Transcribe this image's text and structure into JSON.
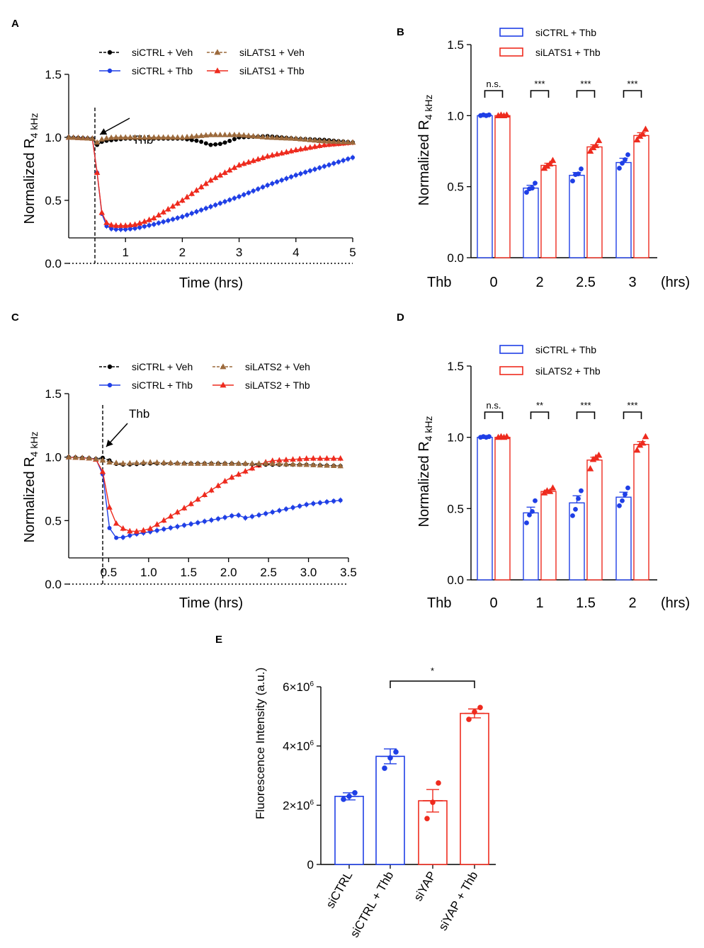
{
  "colors": {
    "blue": "#1f3fe6",
    "red": "#ee2b1e",
    "black": "#000000",
    "brown": "#9c6a3c"
  },
  "chart_data": [
    {
      "id": "A",
      "type": "line",
      "panel_label": "A",
      "xlabel": "Time (hrs)",
      "ylabel_main": "Normalized R",
      "ylabel_sub": "4 kHz",
      "xlim": [
        0,
        5
      ],
      "ylim": [
        0,
        1.5
      ],
      "xticks": [
        {
          "v": 1,
          "label": "1"
        },
        {
          "v": 2,
          "label": "2"
        },
        {
          "v": 3,
          "label": "3"
        },
        {
          "v": 4,
          "label": "4"
        },
        {
          "v": 5,
          "label": "5"
        }
      ],
      "yticks": [
        {
          "v": 0,
          "label": "0.0"
        },
        {
          "v": 0.5,
          "label": "0.5"
        },
        {
          "v": 1.0,
          "label": "1.0"
        },
        {
          "v": 1.5,
          "label": "1.5"
        }
      ],
      "annotation": {
        "text": "Thb",
        "x": 0.45
      },
      "legend": [
        {
          "name": "siCTRL + Veh",
          "color": "black",
          "marker": "circle",
          "dashed": true
        },
        {
          "name": "siLATS1 + Veh",
          "color": "brown",
          "marker": "triangle",
          "dashed": true
        },
        {
          "name": "siCTRL + Thb",
          "color": "blue",
          "marker": "circle",
          "dashed": false
        },
        {
          "name": "siLATS1 + Thb",
          "color": "red",
          "marker": "triangle",
          "dashed": false
        }
      ],
      "series": [
        {
          "name": "siCTRL + Veh",
          "color": "black",
          "marker": "circle",
          "dashed": true,
          "points": [
            [
              0,
              1.0
            ],
            [
              0.45,
              0.99
            ],
            [
              0.5,
              0.94
            ],
            [
              0.6,
              0.97
            ],
            [
              0.8,
              0.98
            ],
            [
              1.0,
              0.99
            ],
            [
              1.5,
              0.99
            ],
            [
              2.0,
              0.99
            ],
            [
              2.3,
              0.97
            ],
            [
              2.5,
              0.94
            ],
            [
              2.7,
              0.95
            ],
            [
              3.0,
              1.0
            ],
            [
              3.5,
              1.01
            ],
            [
              4.0,
              0.99
            ],
            [
              4.5,
              0.98
            ],
            [
              5.0,
              0.96
            ]
          ]
        },
        {
          "name": "siLATS1 + Veh",
          "color": "brown",
          "marker": "triangle",
          "dashed": true,
          "points": [
            [
              0,
              1.0
            ],
            [
              0.45,
              0.99
            ],
            [
              0.5,
              0.96
            ],
            [
              0.6,
              0.99
            ],
            [
              0.8,
              1.0
            ],
            [
              1.0,
              1.0
            ],
            [
              1.5,
              1.0
            ],
            [
              2.0,
              1.0
            ],
            [
              2.5,
              1.02
            ],
            [
              3.0,
              1.02
            ],
            [
              3.5,
              1.0
            ],
            [
              4.0,
              0.99
            ],
            [
              4.5,
              0.97
            ],
            [
              5.0,
              0.96
            ]
          ]
        },
        {
          "name": "siCTRL + Thb",
          "color": "blue",
          "marker": "circle",
          "dashed": false,
          "points": [
            [
              0,
              1.0
            ],
            [
              0.45,
              0.99
            ],
            [
              0.5,
              0.72
            ],
            [
              0.55,
              0.46
            ],
            [
              0.62,
              0.32
            ],
            [
              0.7,
              0.28
            ],
            [
              0.8,
              0.27
            ],
            [
              1.0,
              0.27
            ],
            [
              1.2,
              0.28
            ],
            [
              1.5,
              0.31
            ],
            [
              2.0,
              0.37
            ],
            [
              2.5,
              0.45
            ],
            [
              3.0,
              0.53
            ],
            [
              3.5,
              0.62
            ],
            [
              4.0,
              0.7
            ],
            [
              4.5,
              0.77
            ],
            [
              5.0,
              0.84
            ]
          ]
        },
        {
          "name": "siLATS1 + Thb",
          "color": "red",
          "marker": "triangle",
          "dashed": false,
          "points": [
            [
              0,
              1.0
            ],
            [
              0.45,
              0.99
            ],
            [
              0.5,
              0.72
            ],
            [
              0.55,
              0.46
            ],
            [
              0.62,
              0.34
            ],
            [
              0.7,
              0.31
            ],
            [
              0.8,
              0.3
            ],
            [
              1.0,
              0.3
            ],
            [
              1.2,
              0.31
            ],
            [
              1.5,
              0.36
            ],
            [
              2.0,
              0.5
            ],
            [
              2.5,
              0.66
            ],
            [
              3.0,
              0.78
            ],
            [
              3.5,
              0.85
            ],
            [
              4.0,
              0.9
            ],
            [
              4.5,
              0.94
            ],
            [
              5.0,
              0.96
            ]
          ]
        }
      ]
    },
    {
      "id": "B",
      "type": "bar",
      "panel_label": "B",
      "ylabel_main": "Normalized R",
      "ylabel_sub": "4 kHz",
      "ylim": [
        0,
        1.5
      ],
      "yticks": [
        {
          "v": 0,
          "label": "0.0"
        },
        {
          "v": 0.5,
          "label": "0.5"
        },
        {
          "v": 1.0,
          "label": "1.0"
        },
        {
          "v": 1.5,
          "label": "1.5"
        }
      ],
      "row_label": "Thb",
      "unit_label": "(hrs)",
      "categories": [
        "0",
        "2",
        "2.5",
        "3"
      ],
      "significance": [
        "n.s.",
        "***",
        "***",
        "***"
      ],
      "legend": [
        {
          "name": "siCTRL + Thb",
          "color": "blue"
        },
        {
          "name": "siLATS1 + Thb",
          "color": "red"
        }
      ],
      "series": [
        {
          "name": "siCTRL + Thb",
          "color": "blue",
          "marker": "circle",
          "values": [
            1.0,
            0.49,
            0.58,
            0.67
          ],
          "errors": [
            0.005,
            0.02,
            0.02,
            0.03
          ],
          "points": [
            [
              1.0,
              1.0,
              1.0,
              1.0
            ],
            [
              0.46,
              0.48,
              0.49,
              0.52
            ],
            [
              0.54,
              0.58,
              0.59,
              0.62
            ],
            [
              0.63,
              0.66,
              0.69,
              0.72
            ]
          ]
        },
        {
          "name": "siLATS1 + Thb",
          "color": "red",
          "marker": "triangle",
          "values": [
            1.0,
            0.65,
            0.78,
            0.86
          ],
          "errors": [
            0.005,
            0.015,
            0.015,
            0.02
          ],
          "points": [
            [
              1.0,
              1.0,
              1.0,
              1.0
            ],
            [
              0.63,
              0.64,
              0.66,
              0.68
            ],
            [
              0.75,
              0.77,
              0.79,
              0.82
            ],
            [
              0.83,
              0.85,
              0.87,
              0.9
            ]
          ]
        }
      ]
    },
    {
      "id": "C",
      "type": "line",
      "panel_label": "C",
      "xlabel": "Time (hrs)",
      "ylabel_main": "Normalized R",
      "ylabel_sub": "4 kHz",
      "xlim": [
        0,
        3.5
      ],
      "ylim": [
        0,
        1.5
      ],
      "xticks": [
        {
          "v": 0.5,
          "label": "0.5"
        },
        {
          "v": 1.0,
          "label": "1.0"
        },
        {
          "v": 1.5,
          "label": "1.5"
        },
        {
          "v": 2.0,
          "label": "2.0"
        },
        {
          "v": 2.5,
          "label": "2.5"
        },
        {
          "v": 3.0,
          "label": "3.0"
        },
        {
          "v": 3.5,
          "label": "3.5"
        }
      ],
      "yticks": [
        {
          "v": 0,
          "label": "0.0"
        },
        {
          "v": 0.5,
          "label": "0.5"
        },
        {
          "v": 1.0,
          "label": "1.0"
        },
        {
          "v": 1.5,
          "label": "1.5"
        }
      ],
      "annotation": {
        "text": "Thb",
        "x": 0.4
      },
      "legend": [
        {
          "name": "siCTRL + Veh",
          "color": "black",
          "marker": "circle",
          "dashed": true
        },
        {
          "name": "siLATS2 + Veh",
          "color": "brown",
          "marker": "triangle",
          "dashed": true
        },
        {
          "name": "siCTRL + Thb",
          "color": "blue",
          "marker": "circle",
          "dashed": false
        },
        {
          "name": "siLATS2 + Thb",
          "color": "red",
          "marker": "triangle",
          "dashed": false
        }
      ],
      "series": [
        {
          "name": "siCTRL + Veh",
          "color": "black",
          "marker": "circle",
          "dashed": true,
          "points": [
            [
              0,
              1.0
            ],
            [
              0.3,
              0.99
            ],
            [
              0.4,
              0.98
            ],
            [
              0.45,
              1.01
            ],
            [
              0.55,
              0.95
            ],
            [
              0.7,
              0.94
            ],
            [
              1.0,
              0.95
            ],
            [
              1.5,
              0.95
            ],
            [
              2.0,
              0.95
            ],
            [
              2.5,
              0.94
            ],
            [
              3.0,
              0.94
            ],
            [
              3.4,
              0.93
            ]
          ]
        },
        {
          "name": "siLATS2 + Veh",
          "color": "brown",
          "marker": "triangle",
          "dashed": true,
          "points": [
            [
              0,
              1.0
            ],
            [
              0.3,
              0.99
            ],
            [
              0.4,
              0.98
            ],
            [
              0.5,
              0.96
            ],
            [
              0.7,
              0.95
            ],
            [
              1.0,
              0.96
            ],
            [
              1.5,
              0.95
            ],
            [
              2.0,
              0.95
            ],
            [
              2.5,
              0.95
            ],
            [
              3.0,
              0.94
            ],
            [
              3.4,
              0.93
            ]
          ]
        },
        {
          "name": "siCTRL + Thb",
          "color": "blue",
          "marker": "circle",
          "dashed": false,
          "points": [
            [
              0,
              1.0
            ],
            [
              0.3,
              0.99
            ],
            [
              0.4,
              0.98
            ],
            [
              0.45,
              0.75
            ],
            [
              0.5,
              0.45
            ],
            [
              0.6,
              0.36
            ],
            [
              0.7,
              0.37
            ],
            [
              0.8,
              0.39
            ],
            [
              1.0,
              0.41
            ],
            [
              1.5,
              0.47
            ],
            [
              2.0,
              0.53
            ],
            [
              2.1,
              0.55
            ],
            [
              2.2,
              0.52
            ],
            [
              2.5,
              0.56
            ],
            [
              3.0,
              0.63
            ],
            [
              3.4,
              0.66
            ]
          ]
        },
        {
          "name": "siLATS2 + Thb",
          "color": "red",
          "marker": "triangle",
          "dashed": false,
          "points": [
            [
              0,
              1.0
            ],
            [
              0.3,
              0.99
            ],
            [
              0.4,
              0.97
            ],
            [
              0.45,
              0.8
            ],
            [
              0.5,
              0.62
            ],
            [
              0.6,
              0.47
            ],
            [
              0.7,
              0.43
            ],
            [
              0.8,
              0.41
            ],
            [
              1.0,
              0.43
            ],
            [
              1.5,
              0.62
            ],
            [
              2.0,
              0.83
            ],
            [
              2.5,
              0.97
            ],
            [
              3.0,
              0.99
            ],
            [
              3.4,
              0.99
            ]
          ]
        }
      ]
    },
    {
      "id": "D",
      "type": "bar",
      "panel_label": "D",
      "ylabel_main": "Normalized R",
      "ylabel_sub": "4 kHz",
      "ylim": [
        0,
        1.5
      ],
      "yticks": [
        {
          "v": 0,
          "label": "0.0"
        },
        {
          "v": 0.5,
          "label": "0.5"
        },
        {
          "v": 1.0,
          "label": "1.0"
        },
        {
          "v": 1.5,
          "label": "1.5"
        }
      ],
      "row_label": "Thb",
      "unit_label": "(hrs)",
      "categories": [
        "0",
        "1",
        "1.5",
        "2"
      ],
      "significance": [
        "n.s.",
        "**",
        "***",
        "***"
      ],
      "legend": [
        {
          "name": "siCTRL + Thb",
          "color": "blue"
        },
        {
          "name": "siLATS2 + Thb",
          "color": "red"
        }
      ],
      "series": [
        {
          "name": "siCTRL + Thb",
          "color": "blue",
          "marker": "circle",
          "values": [
            1.0,
            0.47,
            0.54,
            0.58
          ],
          "errors": [
            0.005,
            0.04,
            0.05,
            0.035
          ],
          "points": [
            [
              1.0,
              1.0,
              1.0,
              1.0
            ],
            [
              0.4,
              0.45,
              0.48,
              0.55
            ],
            [
              0.45,
              0.49,
              0.57,
              0.62
            ],
            [
              0.52,
              0.55,
              0.6,
              0.64
            ]
          ]
        },
        {
          "name": "siLATS2 + Thb",
          "color": "red",
          "marker": "triangle",
          "values": [
            1.0,
            0.62,
            0.84,
            0.95
          ],
          "errors": [
            0.005,
            0.01,
            0.02,
            0.02
          ],
          "points": [
            [
              1.0,
              1.0,
              1.0,
              1.0
            ],
            [
              0.61,
              0.62,
              0.62,
              0.64
            ],
            [
              0.78,
              0.84,
              0.86,
              0.87
            ],
            [
              0.91,
              0.94,
              0.96,
              1.0
            ]
          ]
        }
      ]
    },
    {
      "id": "E",
      "type": "bar",
      "panel_label": "E",
      "ylabel": "Fluorescence Intensity (a.u.)",
      "ylim": [
        0,
        6000000
      ],
      "yticks": [
        {
          "v": 0,
          "base": "0",
          "exp": ""
        },
        {
          "v": 2000000,
          "base": "2×10",
          "exp": "6"
        },
        {
          "v": 4000000,
          "base": "4×10",
          "exp": "6"
        },
        {
          "v": 6000000,
          "base": "6×10",
          "exp": "6"
        }
      ],
      "categories": [
        "siCTRL",
        "siCTRL + Thb",
        "siYAP",
        "siYAP + Thb"
      ],
      "bar_colors": [
        "blue",
        "blue",
        "red",
        "red"
      ],
      "values": [
        2300000,
        3650000,
        2150000,
        5100000
      ],
      "errors": [
        120000,
        250000,
        380000,
        150000
      ],
      "points": [
        [
          2200000,
          2300000,
          2420000
        ],
        [
          3250000,
          3600000,
          3800000
        ],
        [
          1550000,
          2100000,
          2750000
        ],
        [
          4900000,
          5150000,
          5300000
        ]
      ],
      "significance": {
        "label": "*",
        "from": 1,
        "to": 3
      }
    }
  ]
}
